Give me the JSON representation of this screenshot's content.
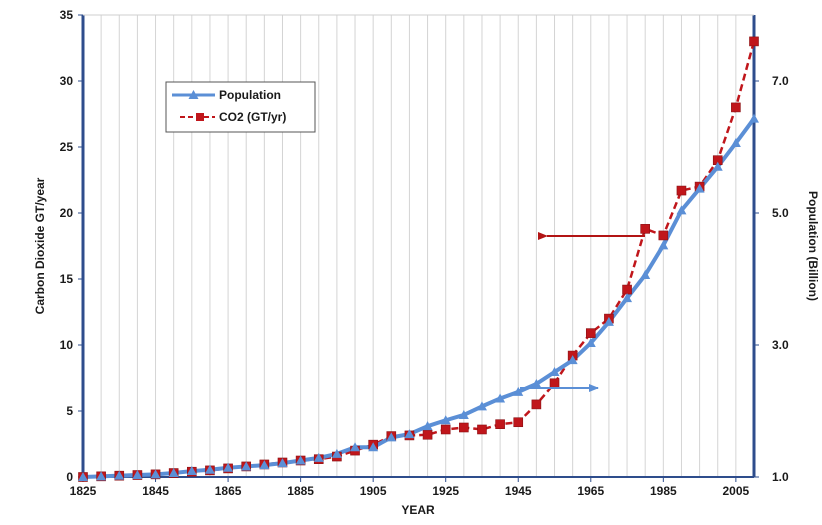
{
  "chart_data": {
    "type": "line",
    "title": "",
    "xlabel": "YEAR",
    "ylabel_left": "Carbon Dioxide GT/year",
    "ylabel_right": "Population (Billion)",
    "xlim": [
      1825,
      2010
    ],
    "ylim_left": [
      0,
      35
    ],
    "ylim_right": [
      1.0,
      8.0
    ],
    "x_ticks": [
      "1825",
      "1845",
      "1865",
      "1885",
      "1905",
      "1925",
      "1945",
      "1965",
      "1985",
      "2005"
    ],
    "y_left_ticks": [
      "0",
      "5",
      "10",
      "15",
      "20",
      "25",
      "30",
      "35"
    ],
    "y_right_ticks": [
      "1.0",
      "3.0",
      "5.0",
      "7.0"
    ],
    "grid": "vertical",
    "legend_position": "top-left",
    "series": [
      {
        "name": "Population",
        "axis": "right",
        "color": "#5b8fd6",
        "marker": "triangle",
        "x": [
          1825,
          1830,
          1835,
          1840,
          1845,
          1850,
          1855,
          1860,
          1865,
          1870,
          1875,
          1880,
          1885,
          1890,
          1895,
          1900,
          1905,
          1910,
          1915,
          1920,
          1925,
          1930,
          1935,
          1940,
          1945,
          1950,
          1955,
          1960,
          1965,
          1970,
          1975,
          1980,
          1985,
          1990,
          1995,
          2000,
          2005,
          2010
        ],
        "values": [
          1.0,
          1.01,
          1.02,
          1.03,
          1.04,
          1.06,
          1.09,
          1.11,
          1.14,
          1.16,
          1.18,
          1.21,
          1.25,
          1.29,
          1.35,
          1.45,
          1.45,
          1.6,
          1.65,
          1.77,
          1.86,
          1.94,
          2.07,
          2.19,
          2.29,
          2.41,
          2.59,
          2.77,
          3.03,
          3.35,
          3.71,
          4.06,
          4.51,
          5.04,
          5.37,
          5.7,
          6.06,
          6.43
        ]
      },
      {
        "name": "CO2 (GT/yr)",
        "axis": "left",
        "color": "#c0161b",
        "marker": "square",
        "x": [
          1825,
          1830,
          1835,
          1840,
          1845,
          1850,
          1855,
          1860,
          1865,
          1870,
          1875,
          1880,
          1885,
          1890,
          1895,
          1900,
          1905,
          1910,
          1915,
          1920,
          1925,
          1930,
          1935,
          1940,
          1945,
          1950,
          1955,
          1960,
          1965,
          1970,
          1975,
          1980,
          1985,
          1990,
          1995,
          2000,
          2005,
          2010
        ],
        "values": [
          0.0,
          0.05,
          0.1,
          0.15,
          0.2,
          0.3,
          0.4,
          0.5,
          0.65,
          0.8,
          0.95,
          1.1,
          1.25,
          1.35,
          1.55,
          2.0,
          2.45,
          3.1,
          3.15,
          3.2,
          3.6,
          3.75,
          3.6,
          4.0,
          4.15,
          5.5,
          7.1,
          9.2,
          10.9,
          12.0,
          14.2,
          18.8,
          18.3,
          21.7,
          22.0,
          24.0,
          28.0,
          33.0
        ]
      }
    ],
    "annotations": [
      {
        "type": "arrow",
        "direction": "left",
        "color": "#b21414",
        "points_to": "left-axis"
      },
      {
        "type": "arrow",
        "direction": "right",
        "color": "#5b8fd6",
        "points_to": "right-axis"
      }
    ]
  }
}
